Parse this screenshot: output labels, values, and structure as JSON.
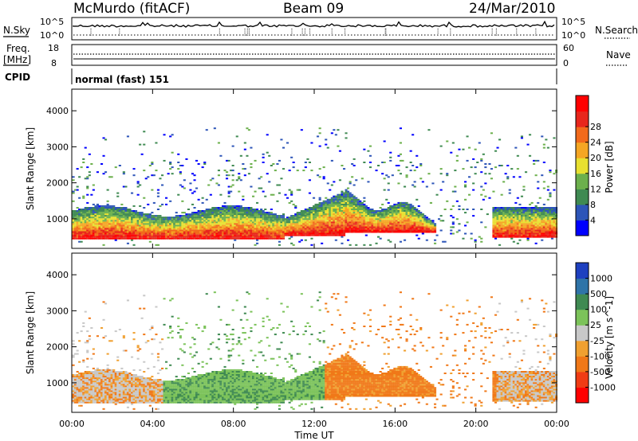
{
  "header": {
    "station": "McMurdo (fitACF)",
    "beam": "Beam 09",
    "date": "24/Mar/2010"
  },
  "status_panel": {
    "nsky_label": "N.Sky",
    "nsearch_label": "N.Search",
    "noise_ticks": [
      "10^5",
      "10^0"
    ],
    "freq_label": "Freq.",
    "freq_unit": "[MHz]",
    "freq_ticks": [
      "18",
      "8"
    ],
    "nave_label": "Nave",
    "nave_ticks": [
      "60",
      "0"
    ],
    "cpid_label": "CPID",
    "cpid_value": "normal (fast) 151"
  },
  "chart_data": [
    {
      "type": "heatmap",
      "title": "",
      "xlabel": "Time UT",
      "ylabel": "Slant Range [km]",
      "x_ticks": [
        "00:00",
        "04:00",
        "08:00",
        "12:00",
        "16:00",
        "20:00",
        "00:00"
      ],
      "xlim_hours": [
        0,
        24
      ],
      "y_ticks": [
        1000,
        2000,
        3000,
        4000
      ],
      "ylim_km": [
        180,
        4600
      ],
      "colorbar": {
        "label": "Power [dB]",
        "ticks": [
          4,
          8,
          12,
          16,
          20,
          24,
          28
        ],
        "colors": [
          "#0000ff",
          "#2d55b8",
          "#3f8a52",
          "#6cb04c",
          "#e8e030",
          "#f5a623",
          "#f26a1b",
          "#e8261c",
          "#ff0000"
        ]
      }
    },
    {
      "type": "heatmap",
      "title": "",
      "xlabel": "Time UT",
      "ylabel": "Slant Range [km]",
      "x_ticks": [
        "00:00",
        "04:00",
        "08:00",
        "12:00",
        "16:00",
        "20:00",
        "00:00"
      ],
      "xlim_hours": [
        0,
        24
      ],
      "y_ticks": [
        1000,
        2000,
        3000,
        4000
      ],
      "ylim_km": [
        180,
        4600
      ],
      "colorbar": {
        "label": "Velocity [m s^-1]",
        "ticks": [
          1000,
          500,
          100,
          25,
          -25,
          -100,
          -500,
          -1000
        ],
        "colors": [
          "#1e40c0",
          "#2f74a8",
          "#3f8a52",
          "#7cc35a",
          "#c8c8c8",
          "#f0a030",
          "#f07818",
          "#f03c14",
          "#ff0000"
        ]
      }
    }
  ]
}
